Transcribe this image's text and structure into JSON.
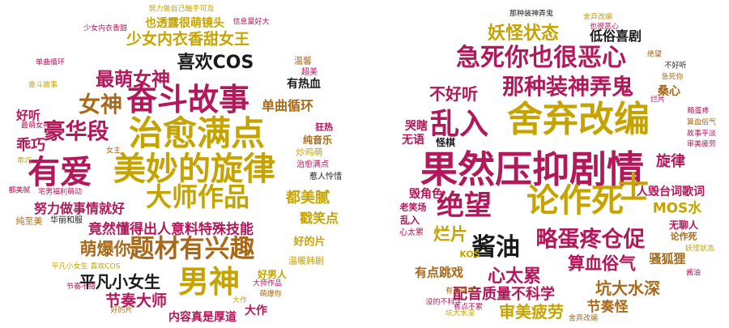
{
  "clouds": [
    {
      "name": "positive-cloud",
      "words": [
        {
          "text": "有爱",
          "color": "#b2185a"
        },
        {
          "text": "美妙的旋律",
          "color": "#c6a400"
        },
        {
          "text": "治愈满点",
          "color": "#c6a400"
        },
        {
          "text": "奋斗故事",
          "color": "#b2185a"
        },
        {
          "text": "男神",
          "color": "#c6a400"
        },
        {
          "text": "大师作品",
          "color": "#c6a400"
        },
        {
          "text": "题材有兴趣",
          "color": "#a86a1a"
        },
        {
          "text": "豪华段",
          "color": "#b2185a"
        },
        {
          "text": "女神",
          "color": "#a86a1a"
        },
        {
          "text": "最萌女神",
          "color": "#b2185a"
        },
        {
          "text": "喜欢COS",
          "color": "#1a1a1a"
        },
        {
          "text": "萌爆你",
          "color": "#a86a1a"
        },
        {
          "text": "少女内衣香甜女王",
          "color": "#c6a400"
        },
        {
          "text": "竟然懂得出人意料特殊技能",
          "color": "#b2185a"
        },
        {
          "text": "平凡小女生",
          "color": "#1a1a1a"
        },
        {
          "text": "节奏大师",
          "color": "#b2185a"
        },
        {
          "text": "努力做事情就好",
          "color": "#b2185a"
        },
        {
          "text": "都美腻",
          "color": "#c6a400"
        },
        {
          "text": "单曲循环",
          "color": "#a86a1a"
        },
        {
          "text": "乖巧",
          "color": "#b2185a"
        },
        {
          "text": "好听",
          "color": "#b2185a"
        },
        {
          "text": "戳笑点",
          "color": "#c6a400"
        },
        {
          "text": "好的片",
          "color": "#c6a400"
        },
        {
          "text": "有热血",
          "color": "#1a1a1a"
        },
        {
          "text": "也透露很萌镜头",
          "color": "#c6a400"
        },
        {
          "text": "内容真是厚道",
          "color": "#b2185a"
        },
        {
          "text": "大作",
          "color": "#b2185a"
        },
        {
          "text": "好男人",
          "color": "#c6a400"
        },
        {
          "text": "华丽和服",
          "color": "#1a1a1a"
        },
        {
          "text": "纯音乐",
          "color": "#a86a1a"
        },
        {
          "text": "狂热",
          "color": "#b2185a"
        },
        {
          "text": "温馨",
          "color": "#a86a1a"
        },
        {
          "text": "超美",
          "color": "#b2185a"
        },
        {
          "text": "纯至美",
          "color": "#a86a1a"
        },
        {
          "text": "炒鸡萌",
          "color": "#c6a400"
        },
        {
          "text": "温暖韩剧",
          "color": "#c6a400"
        },
        {
          "text": "治愈满点",
          "color": "#b2185a"
        },
        {
          "text": "惹人怜惜",
          "color": "#1a1a1a"
        },
        {
          "text": "努力做自己触手可及",
          "color": "#c6a400"
        },
        {
          "text": "少女内衣香甜",
          "color": "#b2185a"
        },
        {
          "text": "信息量好大",
          "color": "#b2185a"
        },
        {
          "text": "宅男福利萌动",
          "color": "#b2185a"
        },
        {
          "text": "平凡小女生 喜欢COS",
          "color": "#c6a400"
        },
        {
          "text": "节奏不错",
          "color": "#b2185a"
        },
        {
          "text": "大师作品",
          "color": "#b2185a"
        },
        {
          "text": "萌爆你",
          "color": "#a86a1a"
        },
        {
          "text": "好的片",
          "color": "#a86a1a"
        },
        {
          "text": "女主",
          "color": "#a86a1a"
        },
        {
          "text": "奋斗故事",
          "color": "#c6a400"
        },
        {
          "text": "最萌女神",
          "color": "#b2185a"
        },
        {
          "text": "单曲循环",
          "color": "#b2185a"
        },
        {
          "text": "乖巧",
          "color": "#c6a400"
        },
        {
          "text": "都美腻",
          "color": "#b2185a"
        },
        {
          "text": "大作",
          "color": "#c6a400"
        }
      ]
    },
    {
      "name": "negative-cloud",
      "words": [
        {
          "text": "果然压抑剧情",
          "color": "#b2185a"
        },
        {
          "text": "舍弃改编",
          "color": "#c6a400"
        },
        {
          "text": "乱入",
          "color": "#b2185a"
        },
        {
          "text": "论作死",
          "color": "#c6a400"
        },
        {
          "text": "绝望",
          "color": "#b2185a"
        },
        {
          "text": "士",
          "color": "#c6a400"
        },
        {
          "text": "急死你也很恶心",
          "color": "#b2185a"
        },
        {
          "text": "那种装神弄鬼",
          "color": "#b2185a"
        },
        {
          "text": "酱油",
          "color": "#1a1a1a"
        },
        {
          "text": "略蛋疼仓促",
          "color": "#b2185a"
        },
        {
          "text": "妖怪状态",
          "color": "#c6a400"
        },
        {
          "text": "不好听",
          "color": "#b2185a"
        },
        {
          "text": "心太累",
          "color": "#b2185a"
        },
        {
          "text": "审美疲劳",
          "color": "#c6a400"
        },
        {
          "text": "烂片",
          "color": "#c6a400"
        },
        {
          "text": "算血俗气",
          "color": "#b2185a"
        },
        {
          "text": "坑大水深",
          "color": "#a86a1a"
        },
        {
          "text": "节奏怪",
          "color": "#a86a1a"
        },
        {
          "text": "配音质量不科学",
          "color": "#b2185a"
        },
        {
          "text": "旋律",
          "color": "#b2185a"
        },
        {
          "text": "MOS水",
          "color": "#c6a400"
        },
        {
          "text": "人毁台词歌词",
          "color": "#b2185a"
        },
        {
          "text": "骚狐狸",
          "color": "#a86a1a"
        },
        {
          "text": "有点跳戏",
          "color": "#a86a1a"
        },
        {
          "text": "低俗喜剧",
          "color": "#1a1a1a"
        },
        {
          "text": "桑心",
          "color": "#a86a1a"
        },
        {
          "text": "毁角色",
          "color": "#b2185a"
        },
        {
          "text": "哭瞎",
          "color": "#b2185a"
        },
        {
          "text": "无语",
          "color": "#b2185a"
        },
        {
          "text": "KOS",
          "color": "#c6a400"
        },
        {
          "text": "无聊人",
          "color": "#b2185a"
        },
        {
          "text": "论作死",
          "color": "#a86a1a"
        },
        {
          "text": "怪棋",
          "color": "#1a1a1a"
        },
        {
          "text": "乱入",
          "color": "#b2185a"
        },
        {
          "text": "老笑场",
          "color": "#b2185a"
        },
        {
          "text": "心太累",
          "color": "#b2185a"
        },
        {
          "text": "那种装神弄鬼",
          "color": "#1a1a1a"
        },
        {
          "text": "舍弃改编",
          "color": "#c6a400"
        },
        {
          "text": "也很恶心",
          "color": "#b2185a"
        },
        {
          "text": "急死你",
          "color": "#a86a1a"
        },
        {
          "text": "不好听",
          "color": "#1a1a1a"
        },
        {
          "text": "绝望",
          "color": "#a86a1a"
        },
        {
          "text": "烂片",
          "color": "#b2185a"
        },
        {
          "text": "略蛋疼",
          "color": "#b2185a"
        },
        {
          "text": "算血俗气",
          "color": "#a86a1a"
        },
        {
          "text": "故事平淡",
          "color": "#b2185a"
        },
        {
          "text": "审美疲劳",
          "color": "#b2185a"
        },
        {
          "text": "妖怪状态",
          "color": "#c6a400"
        },
        {
          "text": "酱油",
          "color": "#b2185a"
        },
        {
          "text": "有点跳戏",
          "color": "#a86a1a"
        },
        {
          "text": "没的不科学",
          "color": "#b2185a"
        },
        {
          "text": "坑大水深",
          "color": "#c6a400"
        },
        {
          "text": "舍弃改编",
          "color": "#a86a1a"
        },
        {
          "text": "有点不累",
          "color": "#b2185a"
        }
      ]
    }
  ]
}
